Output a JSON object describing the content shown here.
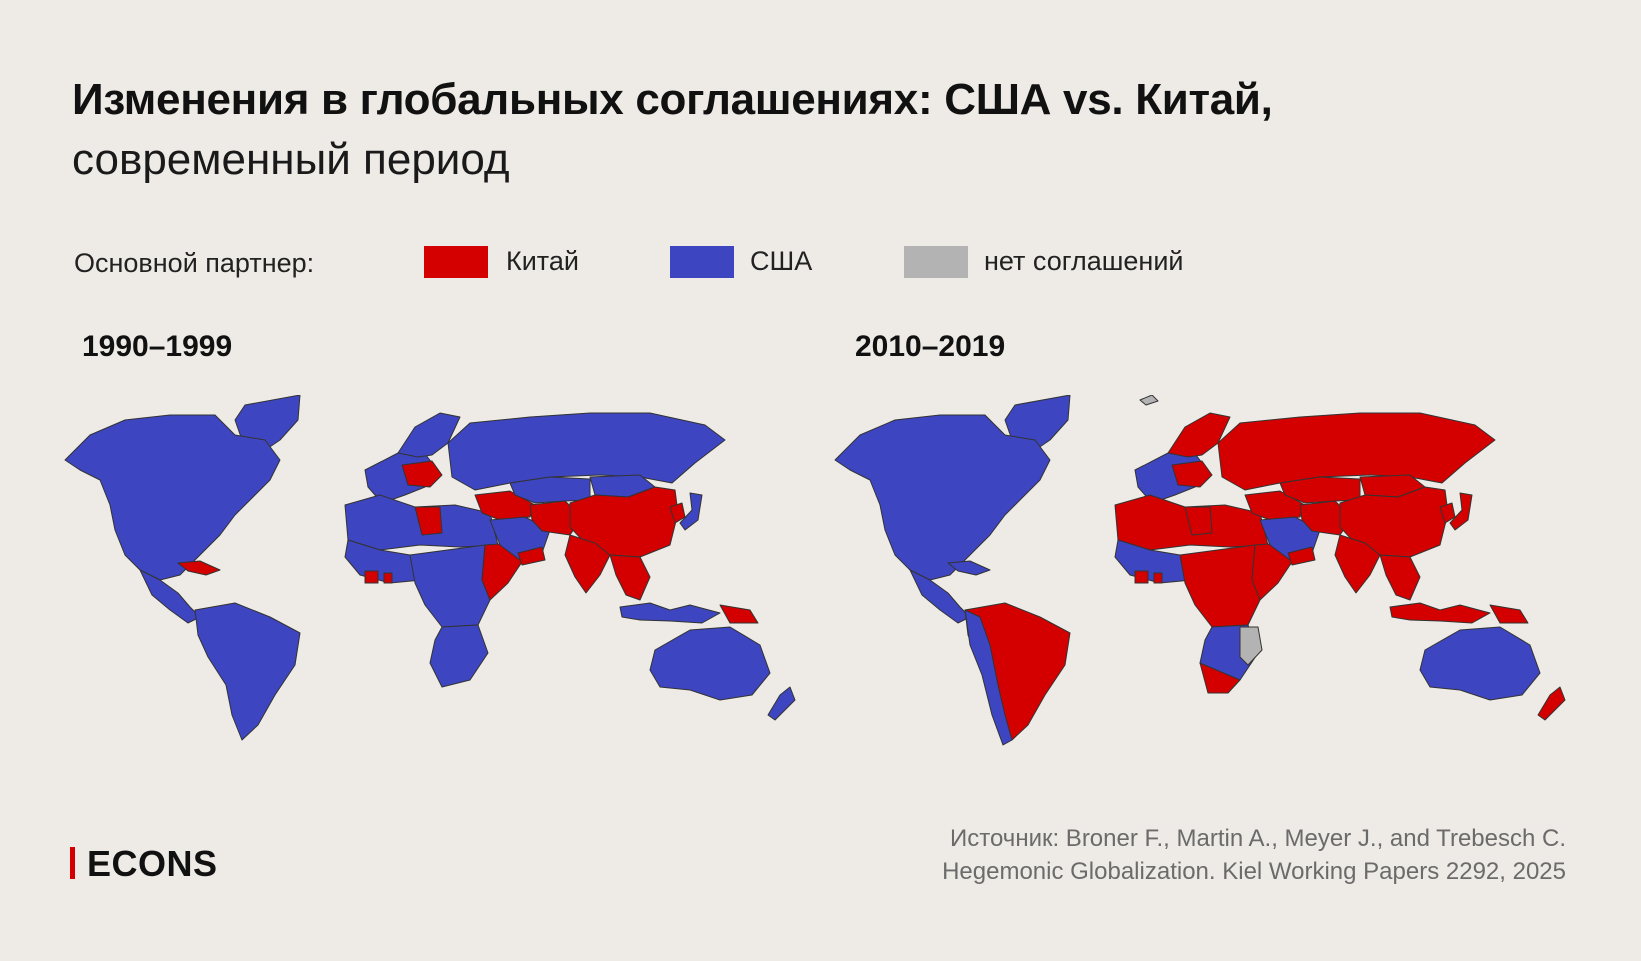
{
  "title": {
    "bold": "Изменения в глобальных соглашениях: США vs. Китай,",
    "light": "современный период"
  },
  "legend": {
    "label": "Основной партнер:",
    "items": [
      {
        "name": "Китай",
        "color": "#d40000"
      },
      {
        "name": "США",
        "color": "#3d45c0"
      },
      {
        "name": "нет соглашений",
        "color": "#b3b3b3"
      }
    ]
  },
  "maps": [
    {
      "period": "1990–1999",
      "regions": {
        "north_america": "usa",
        "greenland": "usa",
        "cuba": "china",
        "central_america": "usa",
        "south_america": "usa",
        "europe_west": "usa",
        "europe_central": "china",
        "scandinavia": "usa",
        "russia": "usa",
        "libya": "china",
        "north_africa": "usa",
        "west_africa": "usa",
        "west_africa_spots": "china",
        "horn_africa": "china",
        "central_africa": "usa",
        "southern_africa": "usa",
        "middle_east": "china",
        "arabia": "usa",
        "yemen": "china",
        "iran": "china",
        "india": "china",
        "central_asia": "usa",
        "mongolia": "usa",
        "china": "china",
        "korea": "china",
        "japan": "usa",
        "indochina": "china",
        "indonesia": "usa",
        "png": "china",
        "australia": "usa",
        "new_zealand": "usa"
      }
    },
    {
      "period": "2010–2019",
      "regions": {
        "north_america": "usa",
        "greenland": "usa",
        "cuba": "usa",
        "central_america": "usa",
        "south_america": "china",
        "south_america_west": "usa",
        "europe_west": "usa",
        "europe_central": "china",
        "scandinavia": "china",
        "russia": "china",
        "libya": "china",
        "north_africa": "china",
        "west_africa": "usa",
        "west_africa_spots": "china",
        "horn_africa": "china",
        "central_africa": "china",
        "southern_africa": "usa",
        "south_africa": "china",
        "mozambique": "none",
        "middle_east": "china",
        "arabia": "usa",
        "yemen": "china",
        "iran": "china",
        "india": "china",
        "central_asia": "china",
        "mongolia": "china",
        "china": "china",
        "korea": "china",
        "japan": "china",
        "indochina": "china",
        "indonesia": "china",
        "png": "china",
        "australia": "usa",
        "new_zealand": "china",
        "svalbard": "none"
      }
    }
  ],
  "colors": {
    "china": "#d40000",
    "usa": "#3d45c0",
    "none": "#b3b3b3"
  },
  "logo": "ECONS",
  "source": {
    "line1": "Источник: Broner F., Martin A., Meyer J., and Trebesch C.",
    "line2": "Hegemonic Globalization. Kiel Working Papers 2292, 2025"
  }
}
